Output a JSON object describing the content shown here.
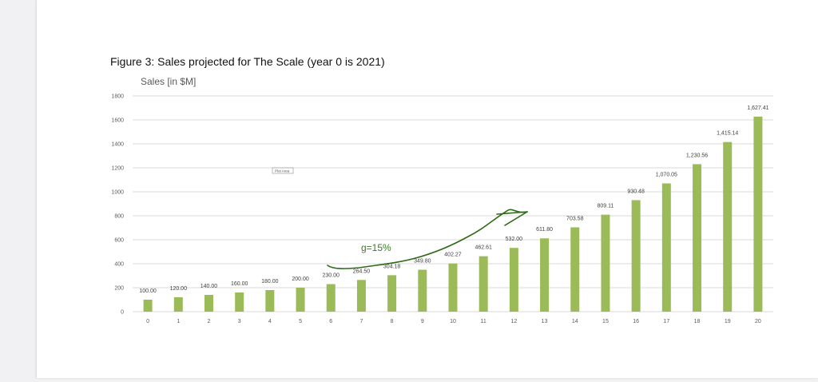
{
  "figure": {
    "caption": "Figure 3: Sales projected for The Scale (year 0 is 2021)"
  },
  "chart_data": {
    "type": "bar",
    "ylabel": "Sales [in $M]",
    "xlabel": "",
    "ylim": [
      0,
      1800
    ],
    "yticks": [
      0,
      200,
      400,
      600,
      800,
      1000,
      1200,
      1400,
      1600,
      1800
    ],
    "grid": true,
    "categories": [
      "0",
      "1",
      "2",
      "3",
      "4",
      "5",
      "6",
      "7",
      "8",
      "9",
      "10",
      "11",
      "12",
      "13",
      "14",
      "15",
      "16",
      "17",
      "18",
      "19",
      "20"
    ],
    "values": [
      100.0,
      120.0,
      140.0,
      160.0,
      180.0,
      200.0,
      230.0,
      264.5,
      304.18,
      349.8,
      402.27,
      462.61,
      532.0,
      611.8,
      703.58,
      809.11,
      930.48,
      1070.05,
      1230.56,
      1415.14,
      1627.41
    ],
    "data_labels": [
      "100.00",
      "120.00",
      "140.00",
      "160.00",
      "180.00",
      "200.00",
      "230.00",
      "264.50",
      "304.18",
      "349.80",
      "402.27",
      "462.61",
      "532.00",
      "611.80",
      "703.58",
      "809.11",
      "930.48",
      "1,070.05",
      "1,230.56",
      "1,415.14",
      "1,627.41"
    ],
    "bar_color": "#9bbb59",
    "annotation": {
      "text": "g=15%",
      "color": "#3a7d1f"
    },
    "plot_area_tag": "Plot Area"
  }
}
